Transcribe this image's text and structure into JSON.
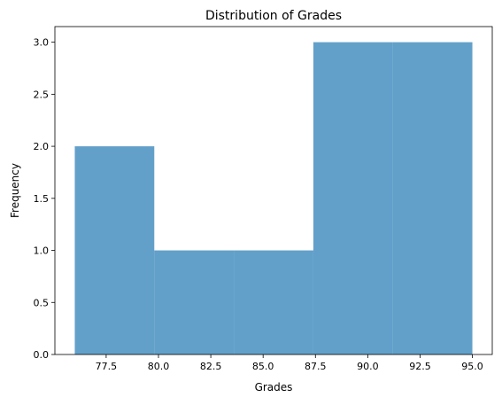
{
  "chart_data": {
    "type": "bar",
    "title": "Distribution of Grades",
    "xlabel": "Grades",
    "ylabel": "Frequency",
    "bins": [
      {
        "x0": 76.0,
        "x1": 79.8,
        "count": 2
      },
      {
        "x0": 79.8,
        "x1": 83.6,
        "count": 1
      },
      {
        "x0": 83.6,
        "x1": 87.4,
        "count": 1
      },
      {
        "x0": 87.4,
        "x1": 91.2,
        "count": 3
      },
      {
        "x0": 91.2,
        "x1": 95.0,
        "count": 3
      }
    ],
    "xlim": [
      75.05,
      95.95
    ],
    "ylim": [
      0,
      3.15
    ],
    "xticks": [
      77.5,
      80.0,
      82.5,
      85.0,
      87.5,
      90.0,
      92.5,
      95.0
    ],
    "xtick_labels": [
      "77.5",
      "80.0",
      "82.5",
      "85.0",
      "87.5",
      "90.0",
      "92.5",
      "95.0"
    ],
    "yticks": [
      0.0,
      0.5,
      1.0,
      1.5,
      2.0,
      2.5,
      3.0
    ],
    "ytick_labels": [
      "0.0",
      "0.5",
      "1.0",
      "1.5",
      "2.0",
      "2.5",
      "3.0"
    ],
    "grid": false,
    "legend": "none",
    "bar_color": "#1f77b4",
    "bar_alpha": 0.7
  }
}
